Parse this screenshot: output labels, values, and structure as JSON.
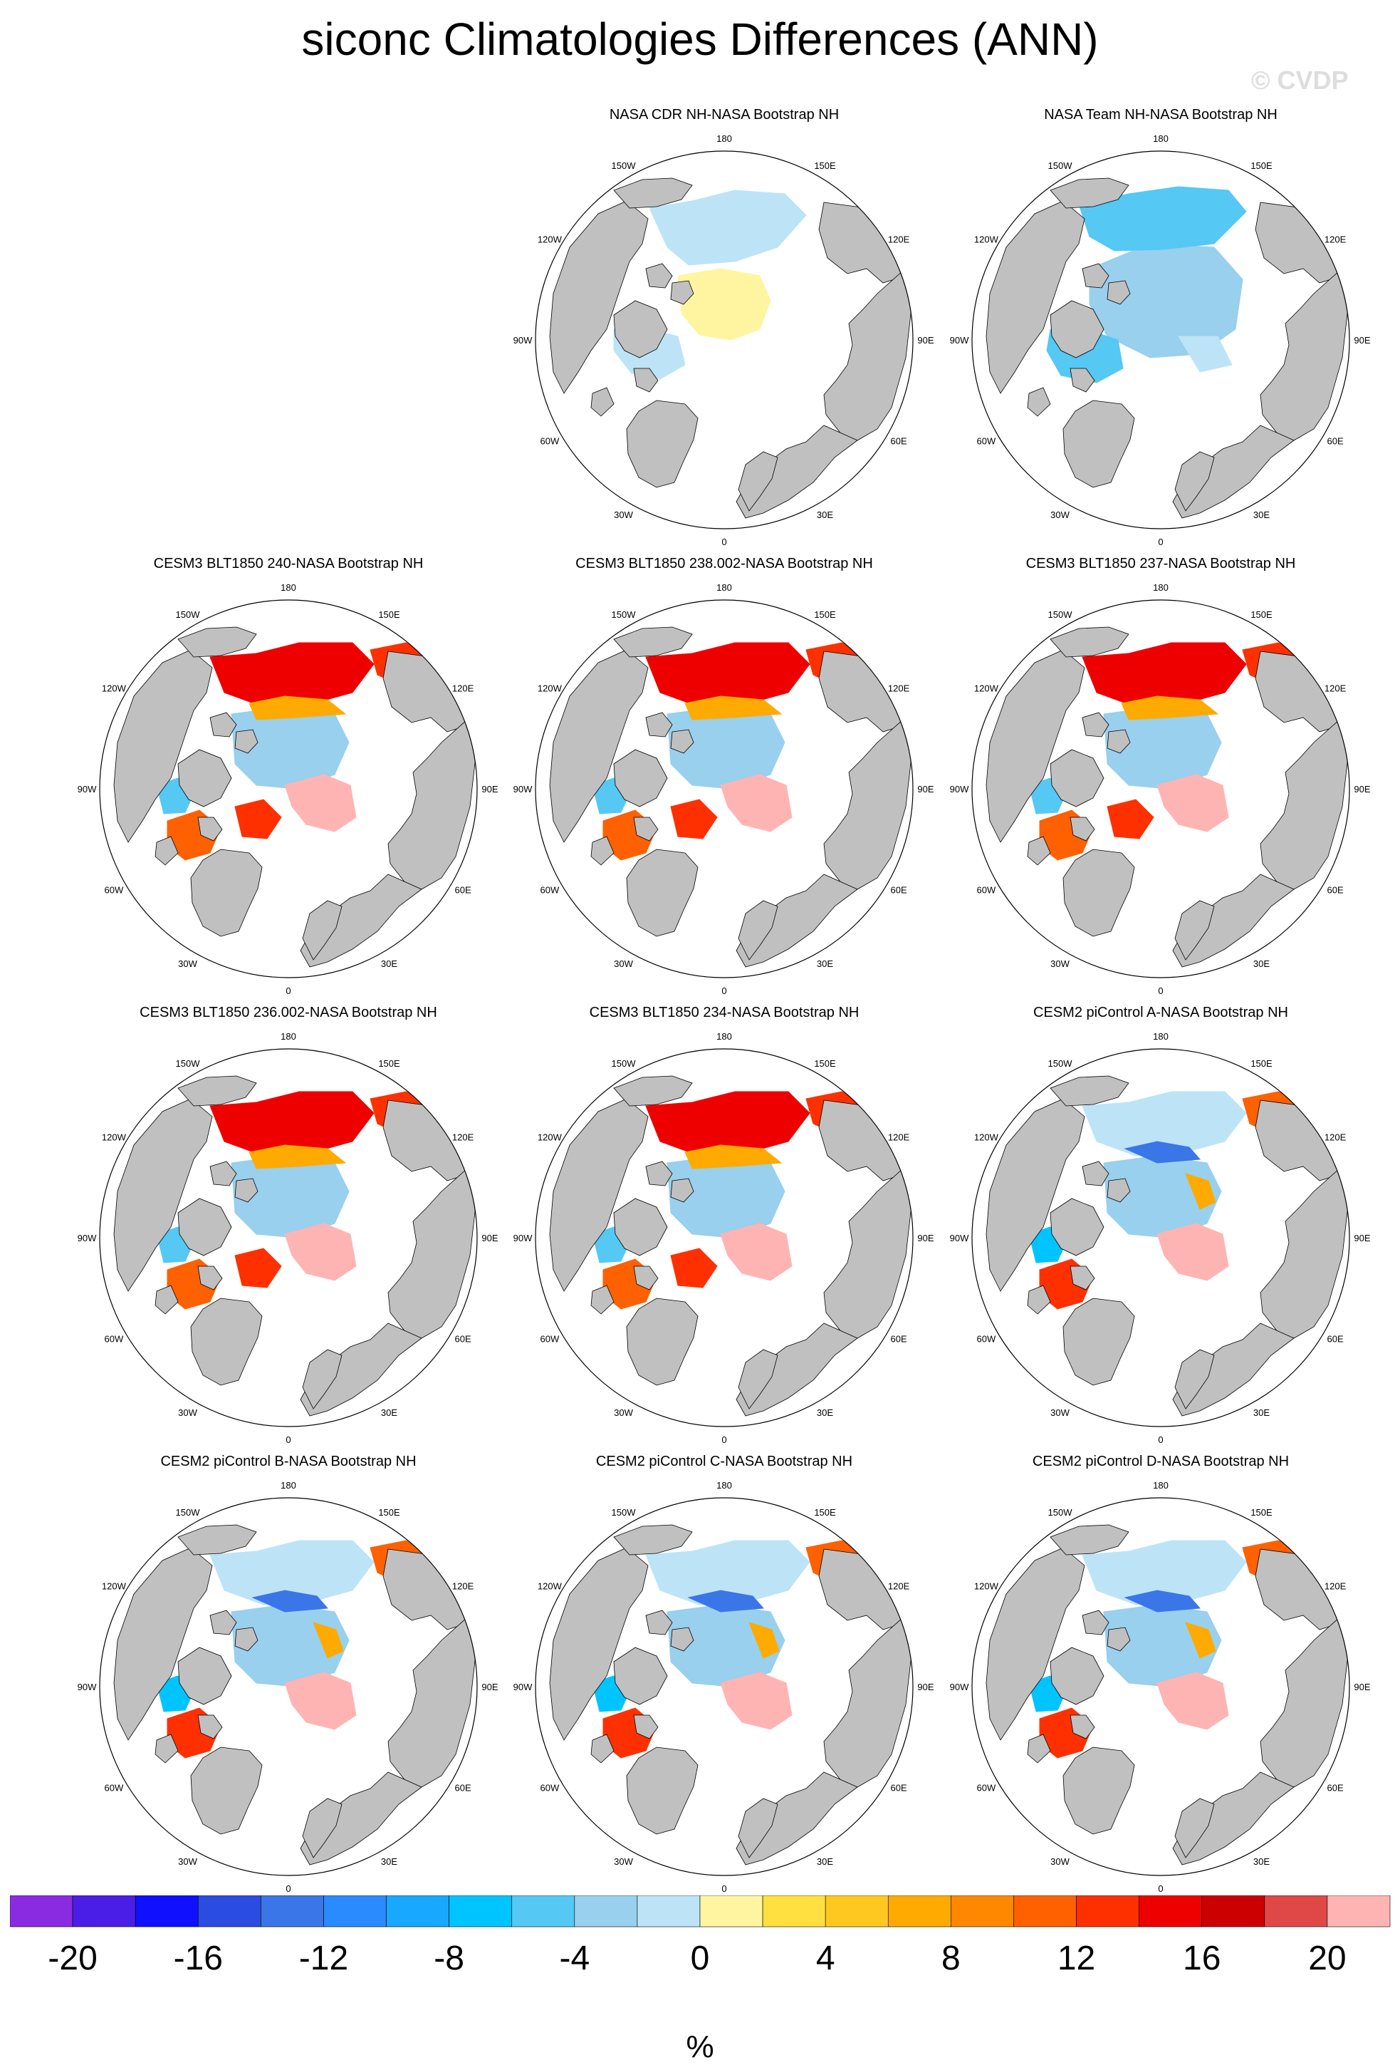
{
  "figure": {
    "title": "siconc Climatologies Differences (ANN)",
    "watermark": "© CVDP"
  },
  "lon_labels": [
    "180",
    "150E",
    "120E",
    "90E",
    "60E",
    "30E",
    "0",
    "30W",
    "60W",
    "90W",
    "120W",
    "150W"
  ],
  "colors": {
    "land": "#c0c0c0",
    "ocean": "#ffffff",
    "ice_edge": "#000000"
  },
  "panels": [
    {
      "id": "p1",
      "title": "NASA CDR NH-NASA Bootstrap NH",
      "pattern": "cdr"
    },
    {
      "id": "p2",
      "title": "NASA Team NH-NASA Bootstrap NH",
      "pattern": "team"
    },
    {
      "id": "p3",
      "title": "CESM3 BLT1850 240-NASA Bootstrap NH",
      "pattern": "cesm3"
    },
    {
      "id": "p4",
      "title": "CESM3 BLT1850 238.002-NASA Bootstrap NH",
      "pattern": "cesm3"
    },
    {
      "id": "p5",
      "title": "CESM3 BLT1850 237-NASA Bootstrap NH",
      "pattern": "cesm3"
    },
    {
      "id": "p6",
      "title": "CESM3 BLT1850 236.002-NASA Bootstrap NH",
      "pattern": "cesm3"
    },
    {
      "id": "p7",
      "title": "CESM3 BLT1850 234-NASA Bootstrap NH",
      "pattern": "cesm3"
    },
    {
      "id": "p8",
      "title": "CESM2 piControl A-NASA Bootstrap NH",
      "pattern": "cesm2"
    },
    {
      "id": "p9",
      "title": "CESM2 piControl B-NASA Bootstrap NH",
      "pattern": "cesm2"
    },
    {
      "id": "p10",
      "title": "CESM2 piControl C-NASA Bootstrap NH",
      "pattern": "cesm2"
    },
    {
      "id": "p11",
      "title": "CESM2 piControl D-NASA Bootstrap NH",
      "pattern": "cesm2"
    }
  ],
  "colorbar": {
    "unit": "%",
    "bin_edges": [
      -22,
      -20,
      -18,
      -16,
      -14,
      -12,
      -10,
      -8,
      -6,
      -4,
      -2,
      0,
      2,
      4,
      6,
      8,
      10,
      12,
      14,
      16,
      18,
      20,
      22
    ],
    "tick_labels": [
      "-20",
      "-16",
      "-12",
      "-8",
      "-4",
      "0",
      "4",
      "8",
      "12",
      "16",
      "20"
    ],
    "colors": [
      "#8a2be2",
      "#4b1ee8",
      "#1010ff",
      "#2a4ce0",
      "#3a76e8",
      "#2a8aff",
      "#18a8ff",
      "#00c4ff",
      "#55c8f4",
      "#98d0ee",
      "#bde4f6",
      "#fff5a0",
      "#ffe040",
      "#ffc820",
      "#ffaa00",
      "#ff8800",
      "#ff6000",
      "#ff3000",
      "#ee0000",
      "#cc0000",
      "#e04848",
      "#ffb4b4"
    ]
  }
}
